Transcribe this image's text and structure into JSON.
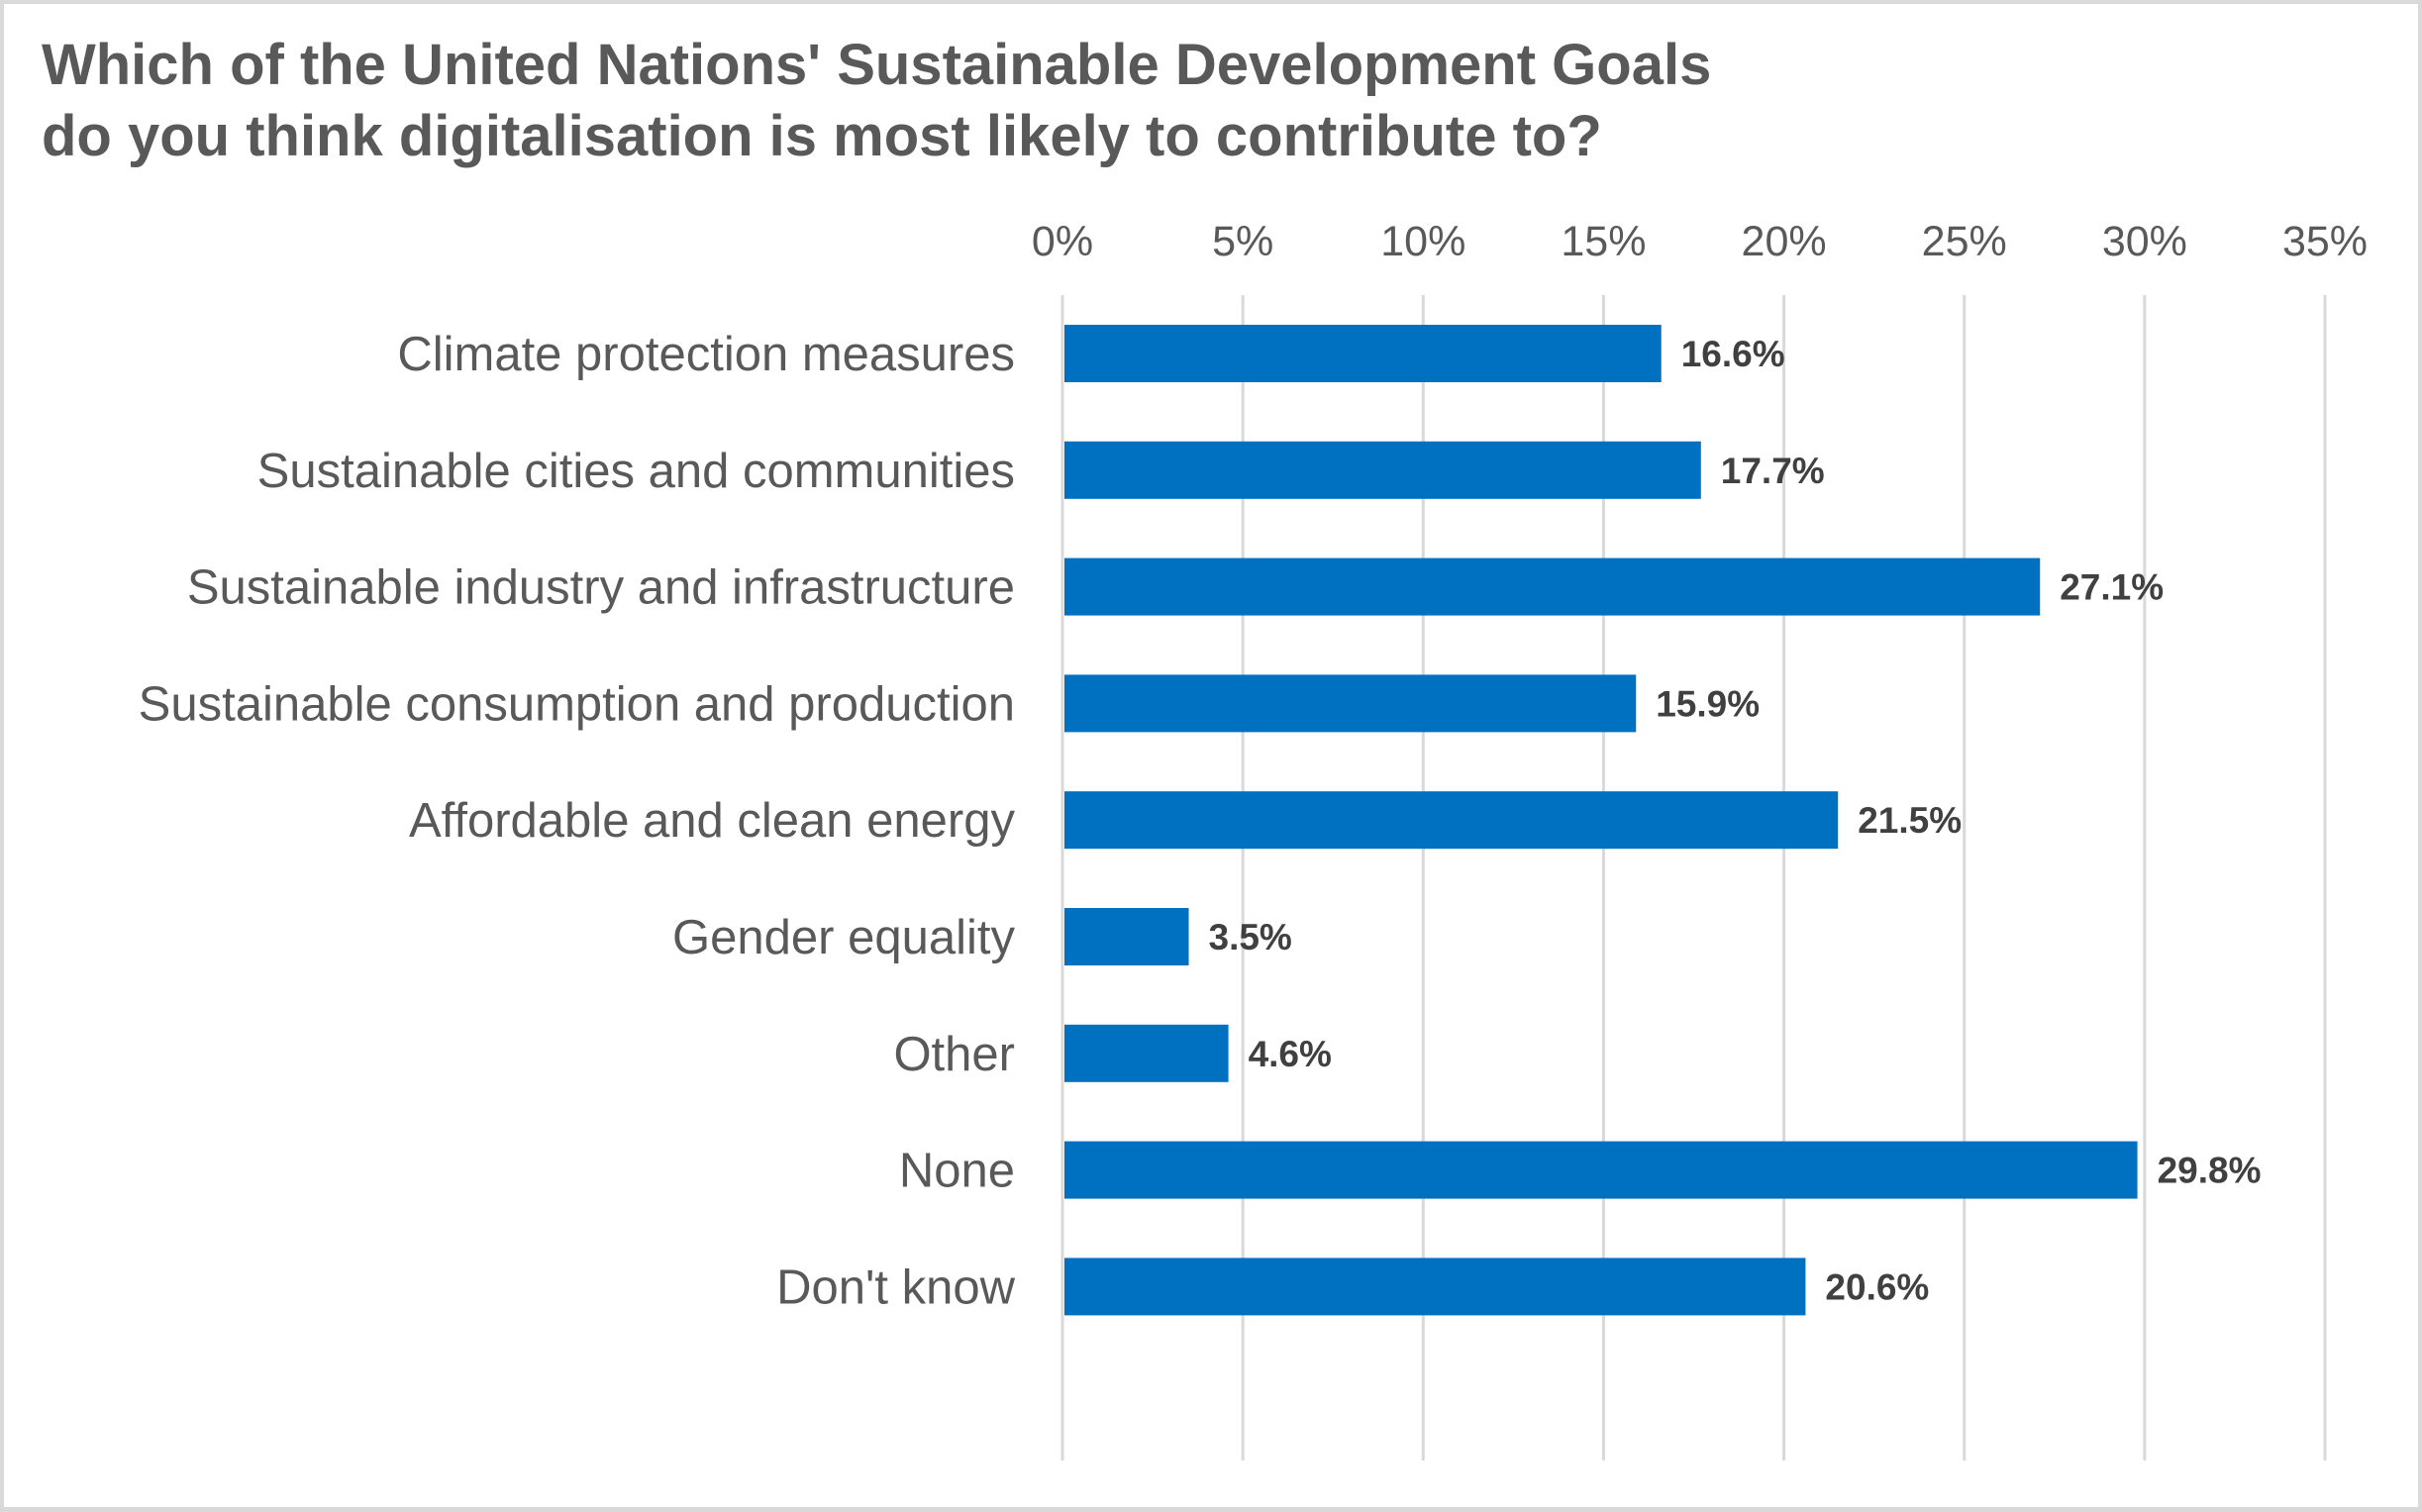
{
  "chart_data": {
    "type": "bar",
    "orientation": "horizontal",
    "title": "Which of the United Nations' Sustainable Development Goals do you think digitalisation is most likely to contribute to?",
    "title_lines": [
      "Which of the United Nations' Sustainable Development Goals",
      "do you think digitalisation is most likely to contribute to?"
    ],
    "categories": [
      "Climate protection measures",
      "Sustainable cities and communities",
      "Sustainable industry and infrastructure",
      "Sustainable consumption and production",
      "Affordable and clean energy",
      "Gender equality",
      "Other",
      "None",
      "Don't know"
    ],
    "values": [
      16.6,
      17.7,
      27.1,
      15.9,
      21.5,
      3.5,
      4.6,
      29.8,
      20.6
    ],
    "value_labels": [
      "16.6%",
      "17.7%",
      "27.1%",
      "15.9%",
      "21.5%",
      "3.5%",
      "4.6%",
      "29.8%",
      "20.6%"
    ],
    "xlabel": "",
    "ylabel": "",
    "xlim": [
      0,
      35
    ],
    "x_ticks": [
      0,
      5,
      10,
      15,
      20,
      25,
      30,
      35
    ],
    "x_tick_labels": [
      "0%",
      "5%",
      "10%",
      "15%",
      "20%",
      "25%",
      "30%",
      "35%"
    ],
    "x_axis_position": "top",
    "grid": true,
    "legend": "none",
    "colors": {
      "bar": "#0070C0",
      "grid": "#d9d9d9",
      "text": "#595959",
      "value_label": "#404040"
    }
  }
}
